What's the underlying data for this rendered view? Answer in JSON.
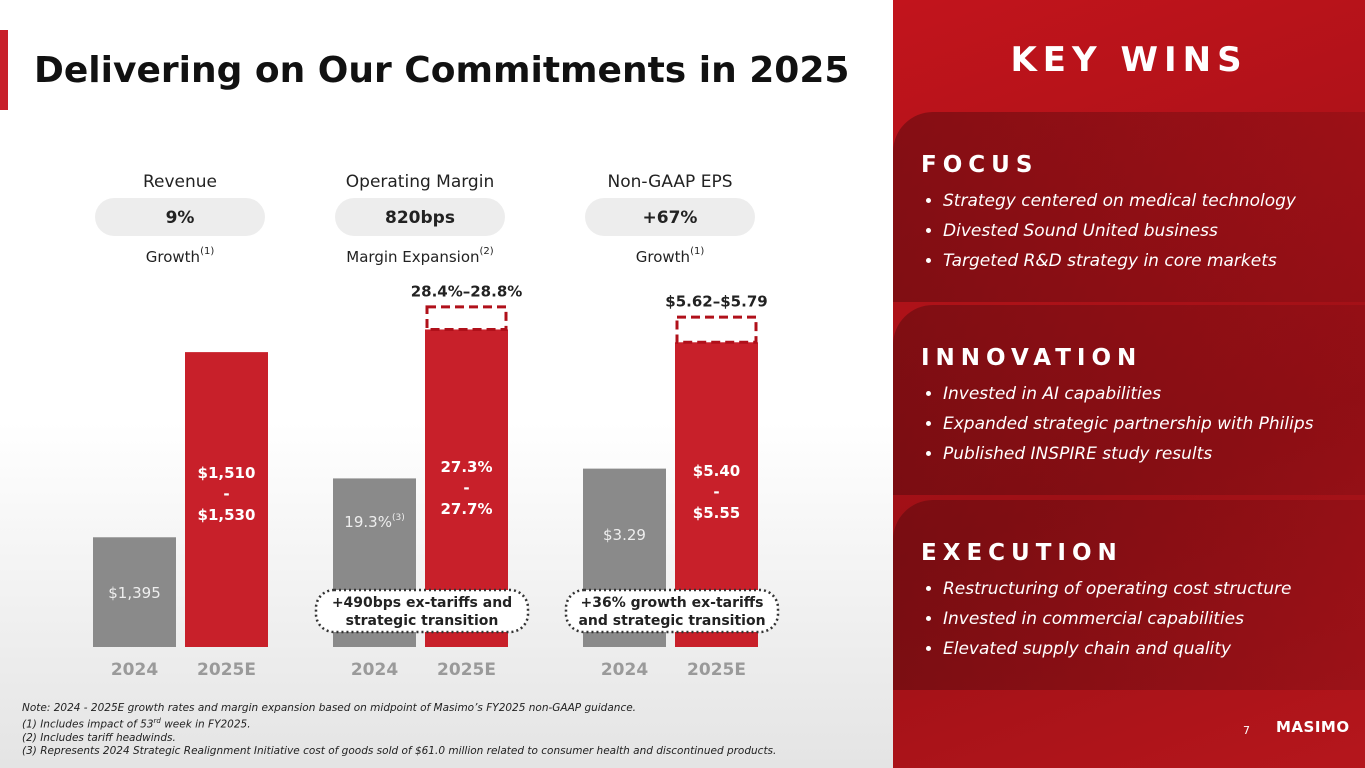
{
  "title": "Delivering on Our Commitments in 2025",
  "chart_data": [
    {
      "type": "bar",
      "title": "Revenue",
      "metric": "9%",
      "metric_caption": "Growth",
      "metric_note": "(1)",
      "categories": [
        "2024",
        "2025E"
      ],
      "values": [
        1395,
        1530
      ],
      "colors": [
        "#8a8a8a",
        "#c8202a"
      ],
      "bar_labels": [
        [
          "$1,395"
        ],
        [
          "$1,510",
          "-",
          "$1,530"
        ]
      ],
      "ylim": [
        1315,
        1568
      ]
    },
    {
      "type": "bar",
      "title": "Operating Margin",
      "metric": "820bps",
      "metric_caption": "Margin Expansion",
      "metric_note": "(2)",
      "categories": [
        "2024",
        "2025E"
      ],
      "values": [
        19.3,
        28.4
      ],
      "colors": [
        "#8a8a8a",
        "#c8202a"
      ],
      "bar_labels": [
        [
          "19.3%"
        ],
        [
          "27.3%",
          "-",
          "27.7%"
        ]
      ],
      "value_note": "(3)",
      "range": [
        28.4,
        28.8
      ],
      "range_label": "28.4%–28.8%",
      "callout": [
        "+490bps ex-tariffs and",
        "strategic transition"
      ],
      "ylim": [
        9,
        30.2
      ]
    },
    {
      "type": "bar",
      "title": "Non-GAAP EPS",
      "metric": "+67%",
      "metric_caption": "Growth",
      "metric_note": "(1)",
      "categories": [
        "2024",
        "2025E"
      ],
      "values": [
        3.29,
        5.62
      ],
      "colors": [
        "#8a8a8a",
        "#c8202a"
      ],
      "bar_labels": [
        [
          "$3.29"
        ],
        [
          "$5.40",
          "-",
          "$5.55"
        ]
      ],
      "range": [
        5.62,
        5.79
      ],
      "range_label": "$5.62–$5.79",
      "callout": [
        "+36% growth ex-tariffs",
        "and strategic transition"
      ],
      "ylim": [
        0,
        6.4
      ]
    }
  ],
  "key_wins": {
    "title": "KEY WINS",
    "sections": [
      {
        "heading": "FOCUS",
        "items": [
          "Strategy centered on medical technology",
          "Divested Sound United business",
          "Targeted R&D strategy in core markets"
        ]
      },
      {
        "heading": "INNOVATION",
        "items": [
          "Invested in AI capabilities",
          "Expanded strategic partnership with Philips",
          "Published INSPIRE study results"
        ]
      },
      {
        "heading": "EXECUTION",
        "items": [
          "Restructuring of operating cost structure",
          "Invested in commercial capabilities",
          "Elevated supply chain and quality"
        ]
      }
    ]
  },
  "footnotes": {
    "note": "Note: 2024 - 2025E growth rates and margin expansion based on midpoint of Masimo’s FY2025 non-GAAP guidance.",
    "one": {
      "text": "(1) Includes impact of 53",
      "sup": "rd",
      "rest": " week in FY2025."
    },
    "two": "(2) Includes tariff headwinds.",
    "three": "(3) Represents 2024 Strategic Realignment Initiative cost of goods sold of $61.0 million related to consumer health and discontinued products."
  },
  "page_number": "7",
  "logo": "MASIMO"
}
